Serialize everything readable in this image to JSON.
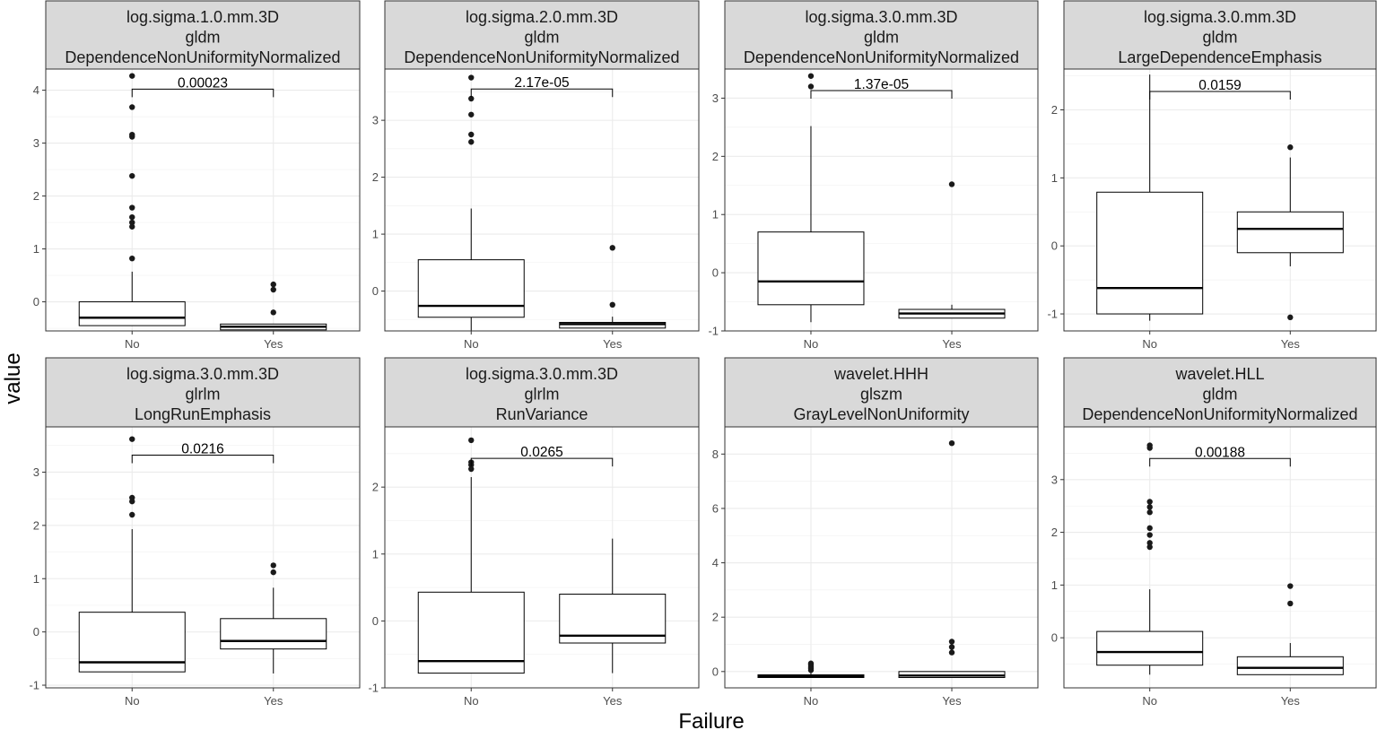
{
  "figure": {
    "xlabel": "Failure",
    "ylabel": "value",
    "colors": {
      "strip_bg": "#d9d9d9",
      "grid": "#ebebeb",
      "frame": "#333333",
      "box": "#000000"
    }
  },
  "chart_data": [
    {
      "type": "boxplot",
      "title_lines": [
        "log.sigma.1.0.mm.3D",
        "gldm",
        "DependenceNonUniformityNormalized"
      ],
      "categories": [
        "No",
        "Yes"
      ],
      "ylim": [
        -0.55,
        4.4
      ],
      "yticks": [
        0,
        1,
        2,
        3,
        4
      ],
      "pvalue": "0.00023",
      "bracket_y": 4.02,
      "boxes": [
        {
          "group": "No",
          "lower_whisker": -0.45,
          "q1": -0.45,
          "median": -0.3,
          "q3": 0.0,
          "upper_whisker": 0.57,
          "outliers": [
            0.82,
            1.42,
            1.5,
            1.6,
            1.78,
            2.38,
            3.12,
            3.16,
            3.68,
            4.27
          ]
        },
        {
          "group": "Yes",
          "lower_whisker": -0.53,
          "q1": -0.53,
          "median": -0.47,
          "q3": -0.42,
          "upper_whisker": -0.42,
          "outliers": [
            -0.2,
            0.23,
            0.33
          ]
        }
      ]
    },
    {
      "type": "boxplot",
      "title_lines": [
        "log.sigma.2.0.mm.3D",
        "gldm",
        "DependenceNonUniformityNormalized"
      ],
      "categories": [
        "No",
        "Yes"
      ],
      "ylim": [
        -0.7,
        3.9
      ],
      "yticks": [
        0,
        1,
        2,
        3
      ],
      "pvalue": "2.17e-05",
      "bracket_y": 3.55,
      "boxes": [
        {
          "group": "No",
          "lower_whisker": -0.7,
          "q1": -0.46,
          "median": -0.26,
          "q3": 0.55,
          "upper_whisker": 1.45,
          "outliers": [
            2.62,
            2.75,
            3.1,
            3.38,
            3.75
          ]
        },
        {
          "group": "Yes",
          "lower_whisker": -0.65,
          "q1": -0.65,
          "median": -0.58,
          "q3": -0.55,
          "upper_whisker": -0.45,
          "outliers": [
            -0.24,
            0.76
          ]
        }
      ]
    },
    {
      "type": "boxplot",
      "title_lines": [
        "log.sigma.3.0.mm.3D",
        "gldm",
        "DependenceNonUniformityNormalized"
      ],
      "categories": [
        "No",
        "Yes"
      ],
      "ylim": [
        -1.0,
        3.5
      ],
      "yticks": [
        -1,
        0,
        1,
        2,
        3
      ],
      "pvalue": "1.37e-05",
      "bracket_y": 3.13,
      "boxes": [
        {
          "group": "No",
          "lower_whisker": -0.85,
          "q1": -0.55,
          "median": -0.15,
          "q3": 0.7,
          "upper_whisker": 2.52,
          "outliers": [
            3.2,
            3.38
          ]
        },
        {
          "group": "Yes",
          "lower_whisker": -0.78,
          "q1": -0.78,
          "median": -0.7,
          "q3": -0.63,
          "upper_whisker": -0.55,
          "outliers": [
            1.52
          ]
        }
      ]
    },
    {
      "type": "boxplot",
      "title_lines": [
        "log.sigma.3.0.mm.3D",
        "gldm",
        "LargeDependenceEmphasis"
      ],
      "categories": [
        "No",
        "Yes"
      ],
      "ylim": [
        -1.25,
        2.6
      ],
      "yticks": [
        -1,
        0,
        1,
        2
      ],
      "pvalue": "0.0159",
      "bracket_y": 2.27,
      "boxes": [
        {
          "group": "No",
          "lower_whisker": -1.1,
          "q1": -1.0,
          "median": -0.62,
          "q3": 0.79,
          "upper_whisker": 2.52,
          "outliers": []
        },
        {
          "group": "Yes",
          "lower_whisker": -0.3,
          "q1": -0.1,
          "median": 0.25,
          "q3": 0.5,
          "upper_whisker": 1.3,
          "outliers": [
            -1.05,
            1.45
          ]
        }
      ]
    },
    {
      "type": "boxplot",
      "title_lines": [
        "log.sigma.3.0.mm.3D",
        "glrlm",
        "LongRunEmphasis"
      ],
      "categories": [
        "No",
        "Yes"
      ],
      "ylim": [
        -1.05,
        3.85
      ],
      "yticks": [
        -1,
        0,
        1,
        2,
        3
      ],
      "pvalue": "0.0216",
      "bracket_y": 3.32,
      "boxes": [
        {
          "group": "No",
          "lower_whisker": -0.75,
          "q1": -0.75,
          "median": -0.57,
          "q3": 0.37,
          "upper_whisker": 1.93,
          "outliers": [
            2.2,
            2.45,
            2.52,
            3.62
          ]
        },
        {
          "group": "Yes",
          "lower_whisker": -0.78,
          "q1": -0.32,
          "median": -0.17,
          "q3": 0.25,
          "upper_whisker": 0.83,
          "outliers": [
            1.12,
            1.25
          ]
        }
      ]
    },
    {
      "type": "boxplot",
      "title_lines": [
        "log.sigma.3.0.mm.3D",
        "glrlm",
        "RunVariance"
      ],
      "categories": [
        "No",
        "Yes"
      ],
      "ylim": [
        -1.0,
        2.9
      ],
      "yticks": [
        -1,
        0,
        1,
        2
      ],
      "pvalue": "0.0265",
      "bracket_y": 2.43,
      "boxes": [
        {
          "group": "No",
          "lower_whisker": -0.78,
          "q1": -0.78,
          "median": -0.6,
          "q3": 0.43,
          "upper_whisker": 2.15,
          "outliers": [
            2.27,
            2.33,
            2.37,
            2.7
          ]
        },
        {
          "group": "Yes",
          "lower_whisker": -0.78,
          "q1": -0.33,
          "median": -0.22,
          "q3": 0.4,
          "upper_whisker": 1.23,
          "outliers": []
        }
      ]
    },
    {
      "type": "boxplot",
      "title_lines": [
        "wavelet.HHH",
        "glszm",
        "GrayLevelNonUniformity"
      ],
      "categories": [
        "No",
        "Yes"
      ],
      "ylim": [
        -0.6,
        9.0
      ],
      "yticks": [
        0,
        2,
        4,
        6,
        8
      ],
      "pvalue": "",
      "bracket_y": null,
      "boxes": [
        {
          "group": "No",
          "lower_whisker": -0.22,
          "q1": -0.22,
          "median": -0.17,
          "q3": -0.12,
          "upper_whisker": -0.05,
          "outliers": [
            0.05,
            0.12,
            0.18,
            0.25,
            0.3
          ]
        },
        {
          "group": "Yes",
          "lower_whisker": -0.22,
          "q1": -0.22,
          "median": -0.15,
          "q3": 0.0,
          "upper_whisker": 0.0,
          "outliers": [
            0.7,
            0.9,
            1.1,
            8.4
          ]
        }
      ]
    },
    {
      "type": "boxplot",
      "title_lines": [
        "wavelet.HLL",
        "gldm",
        "DependenceNonUniformityNormalized"
      ],
      "categories": [
        "No",
        "Yes"
      ],
      "ylim": [
        -0.95,
        4.0
      ],
      "yticks": [
        0,
        1,
        2,
        3
      ],
      "pvalue": "0.00188",
      "bracket_y": 3.4,
      "boxes": [
        {
          "group": "No",
          "lower_whisker": -0.7,
          "q1": -0.52,
          "median": -0.27,
          "q3": 0.12,
          "upper_whisker": 0.92,
          "outliers": [
            1.72,
            1.8,
            1.95,
            2.08,
            2.38,
            2.48,
            2.58,
            3.6,
            3.65
          ]
        },
        {
          "group": "Yes",
          "lower_whisker": -0.7,
          "q1": -0.7,
          "median": -0.57,
          "q3": -0.36,
          "upper_whisker": -0.1,
          "outliers": [
            0.65,
            0.98
          ]
        }
      ]
    }
  ]
}
